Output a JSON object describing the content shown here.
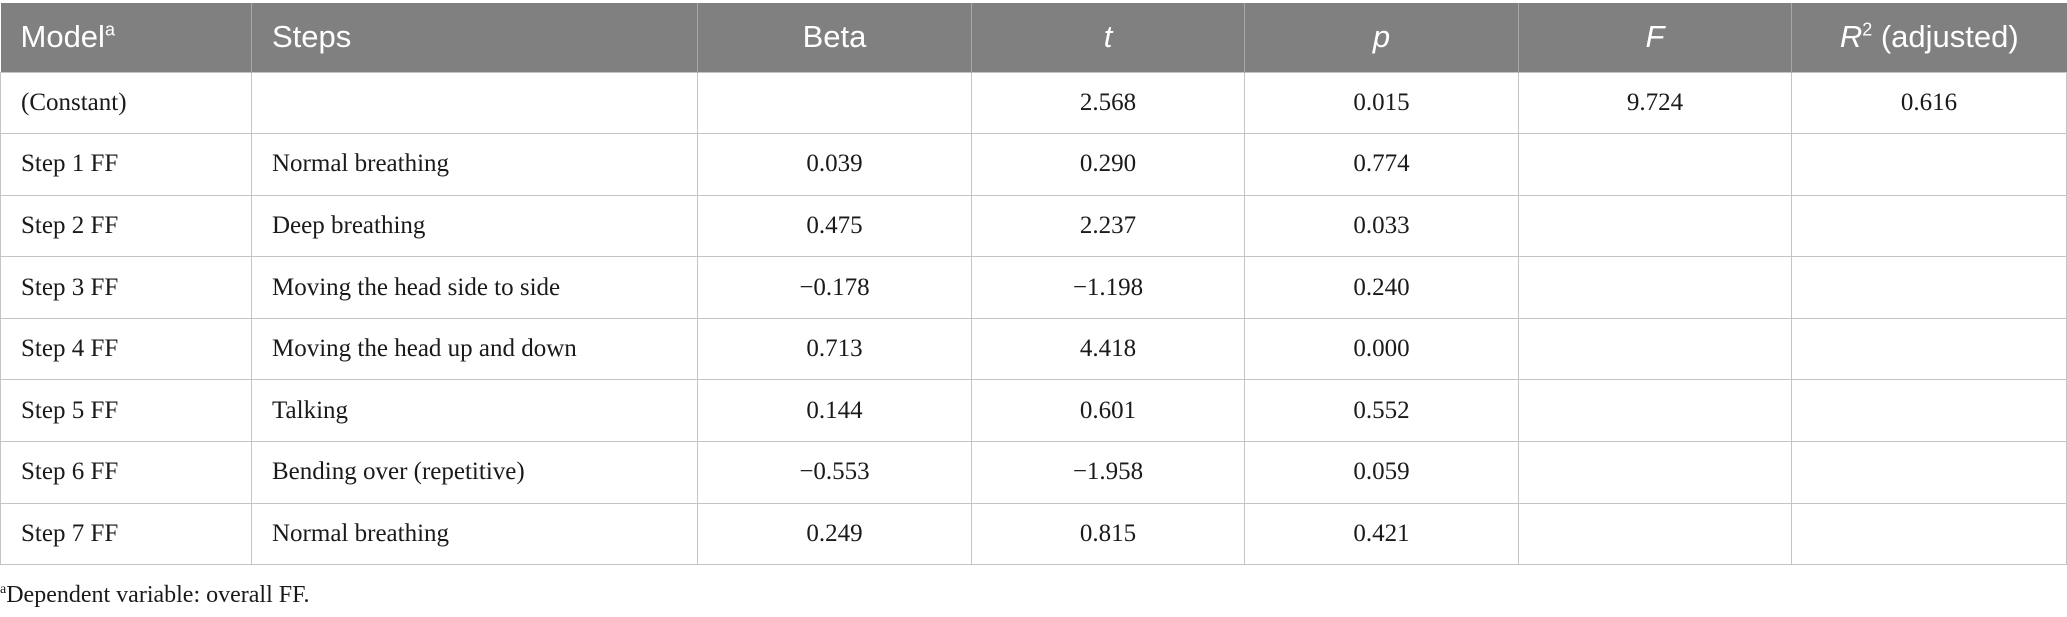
{
  "table": {
    "headers": {
      "model": "Model",
      "model_sup": "a",
      "steps": "Steps",
      "beta": "Beta",
      "t": "t",
      "p": "p",
      "f": "F",
      "r": "R",
      "r_sup": "2",
      "r_suffix": " (adjusted)"
    },
    "rows": [
      {
        "model": "(Constant)",
        "step": "",
        "beta": "",
        "t": "2.568",
        "p": "0.015",
        "f": "9.724",
        "r2": "0.616"
      },
      {
        "model": "Step 1 FF",
        "step": "Normal breathing",
        "beta": "0.039",
        "t": "0.290",
        "p": "0.774",
        "f": "",
        "r2": ""
      },
      {
        "model": "Step 2 FF",
        "step": "Deep breathing",
        "beta": "0.475",
        "t": "2.237",
        "p": "0.033",
        "f": "",
        "r2": ""
      },
      {
        "model": "Step 3 FF",
        "step": "Moving the head side to side",
        "beta": "−0.178",
        "t": "−1.198",
        "p": "0.240",
        "f": "",
        "r2": ""
      },
      {
        "model": "Step 4 FF",
        "step": "Moving the head up and down",
        "beta": "0.713",
        "t": "4.418",
        "p": "0.000",
        "f": "",
        "r2": ""
      },
      {
        "model": "Step 5 FF",
        "step": "Talking",
        "beta": "0.144",
        "t": "0.601",
        "p": "0.552",
        "f": "",
        "r2": ""
      },
      {
        "model": "Step 6 FF",
        "step": "Bending over (repetitive)",
        "beta": "−0.553",
        "t": "−1.958",
        "p": "0.059",
        "f": "",
        "r2": ""
      },
      {
        "model": "Step 7 FF",
        "step": "Normal breathing",
        "beta": "0.249",
        "t": "0.815",
        "p": "0.421",
        "f": "",
        "r2": ""
      }
    ]
  },
  "footnote": {
    "marker": "a",
    "text": "Dependent variable: overall FF."
  },
  "colors": {
    "header_bg": "#808080",
    "header_text": "#ffffff",
    "grid": "#c4c4c4"
  }
}
